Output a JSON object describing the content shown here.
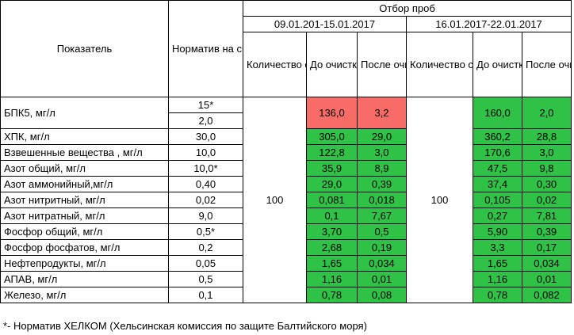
{
  "headers": {
    "indicator": "Показатель",
    "norm": "Норматив на сброс",
    "sampling": "Отбор проб",
    "period1": "09.01.201-15.01.2017",
    "period2": "16.01.2017-22.01.2017",
    "drains_pct": "Количество стоков, прошедших очистку, %",
    "before": "До очистки",
    "after": "После очистки"
  },
  "colors": {
    "red": "#f86c68",
    "green": "#2fc246"
  },
  "drains_value_period1": "100",
  "drains_value_period2": "100",
  "rows": [
    {
      "name": "БПК5, мг/л",
      "norm": "15*",
      "norm2": "2,0",
      "p1_before": "136,0",
      "p1_after": "3,2",
      "p2_before": "160,0",
      "p2_after": "2,0"
    },
    {
      "name": "ХПК, мг/л",
      "norm": "30,0",
      "p1_before": "305,0",
      "p1_after": "29,0",
      "p2_before": "360,2",
      "p2_after": "28,8"
    },
    {
      "name": "Взвешенные вещества , мг/л",
      "norm": "10,0",
      "p1_before": "122,8",
      "p1_after": "3,0",
      "p2_before": "170,6",
      "p2_after": "3,0"
    },
    {
      "name": "Азот общий, мг/л",
      "norm": "10,0*",
      "p1_before": "35,9",
      "p1_after": "8,9",
      "p2_before": "47,5",
      "p2_after": "9,8"
    },
    {
      "name": "Азот аммонийный,мг/л",
      "norm": "0,40",
      "p1_before": "29,0",
      "p1_after": "0,39",
      "p2_before": "37,4",
      "p2_after": "0,30"
    },
    {
      "name": "Азот нитритный, мг/л",
      "norm": "0,02",
      "p1_before": "0,081",
      "p1_after": "0,018",
      "p2_before": "0,105",
      "p2_after": "0,02"
    },
    {
      "name": "Азот нитратный, мг/л",
      "norm": "9,0",
      "p1_before": "0,1",
      "p1_after": "7,67",
      "p2_before": "0,27",
      "p2_after": "7,81"
    },
    {
      "name": "Фосфор общий, мг/л",
      "norm": "0,5*",
      "p1_before": "3,70",
      "p1_after": "0,5",
      "p2_before": "5,90",
      "p2_after": "0,39"
    },
    {
      "name": "Фосфор фосфатов, мг/л",
      "norm": "0,2",
      "p1_before": "2,68",
      "p1_after": "0,19",
      "p2_before": "3,3",
      "p2_after": "0,17"
    },
    {
      "name": "Нефтепродукты, мг/л",
      "norm": "0,05",
      "p1_before": "1,65",
      "p1_after": "0,034",
      "p2_before": "1,65",
      "p2_after": "0,034"
    },
    {
      "name": "АПАВ, мг/л",
      "norm": "0,5",
      "p1_before": "1,16",
      "p1_after": "0,01",
      "p2_before": "1,16",
      "p2_after": "0,01"
    },
    {
      "name": "Железо, мг/л",
      "norm": "0,1",
      "p1_before": "0,78",
      "p1_after": "0,08",
      "p2_before": "0,78",
      "p2_after": "0,082"
    }
  ],
  "footnote": "*- Норматив ХЕЛКОМ (Хельсинская комиссия по защите Балтийского моря)"
}
